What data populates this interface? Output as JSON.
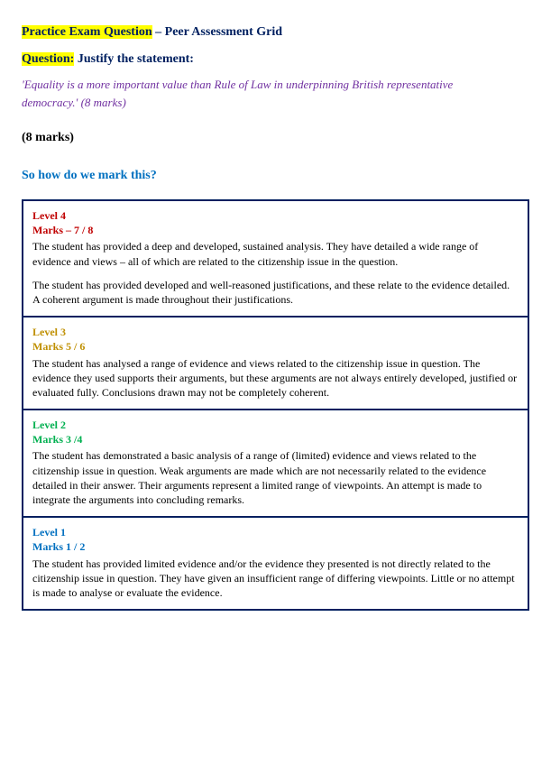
{
  "header": {
    "highlight_a": "Practice Exam Question",
    "rest_a": " – Peer Assessment Grid",
    "highlight_b": "Question:",
    "rest_b": " Justify the statement:"
  },
  "statement": "'Equality is a more important value than Rule of Law in underpinning British representative democracy.'  (8 marks)",
  "marks_plain": "(8 marks)",
  "how_mark": "So how do we mark this?",
  "levels": [
    {
      "title": "Level 4",
      "marks": "Marks – 7 / 8",
      "color": "c-red",
      "para1": "The student has provided a deep and developed, sustained analysis. They have detailed a wide range of evidence and views – all of which are related to the citizenship issue in the question.",
      "para2": "The student has provided developed and well-reasoned justifications, and these relate to the evidence detailed. A coherent argument is made throughout their justifications."
    },
    {
      "title": "Level 3",
      "marks": "Marks 5 / 6",
      "color": "c-olive",
      "para1": "The student has analysed a range of evidence and views related to the citizenship issue in question. The evidence they used supports their arguments, but these arguments are not always entirely developed, justified or evaluated fully. Conclusions drawn may not be completely coherent.",
      "para2": ""
    },
    {
      "title": "Level 2",
      "marks": "Marks 3 /4",
      "color": "c-green",
      "para1": "The student has demonstrated a basic analysis of a range of (limited) evidence and views related to the citizenship issue in question. Weak arguments are made which are not necessarily related to the evidence detailed in their answer. Their arguments represent a limited range of viewpoints. An attempt is made to integrate the arguments into concluding remarks.",
      "para2": ""
    },
    {
      "title": "Level 1",
      "marks": "Marks 1 / 2",
      "color": "c-blue",
      "para1": "The student has provided limited evidence and/or the evidence they presented is not directly related to the citizenship issue in question. They have given an insufficient range of differing viewpoints. Little or no attempt is made to analyse or evaluate the evidence.",
      "para2": ""
    }
  ]
}
